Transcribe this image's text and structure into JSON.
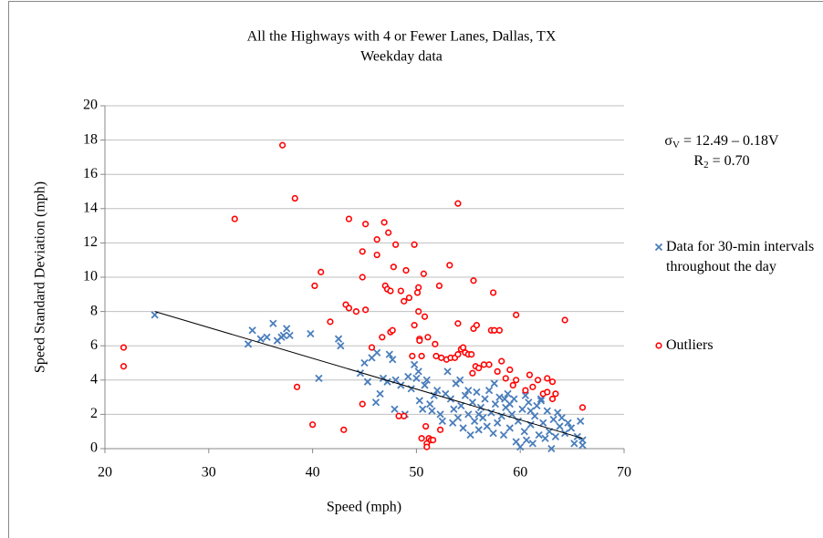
{
  "chart_data": {
    "type": "scatter",
    "title": "All the Highways with 4 or Fewer Lanes, Dallas, TX",
    "subtitle": "Weekday data",
    "x_label": "Speed (mph)",
    "y_label": "Speed Standard Deviation (mph)",
    "xlim": [
      20,
      70
    ],
    "xticks": [
      20,
      30,
      40,
      50,
      60,
      70
    ],
    "ylim": [
      0,
      20
    ],
    "yticks": [
      0,
      2,
      4,
      6,
      8,
      10,
      12,
      14,
      16,
      18,
      20
    ],
    "grid": true,
    "legend": "right",
    "equation": {
      "symbol": "σ",
      "sub": "V",
      "rest": " = 12.49 – 0.18V"
    },
    "r2": {
      "symbol": "R",
      "sub": "2",
      "rest": " = 0.70"
    },
    "trendline": {
      "color": "#000000",
      "x": [
        24.8,
        66
      ],
      "values": [
        8.0,
        0.6
      ]
    },
    "series": [
      {
        "name": "Data for 30-min intervals throughout the day",
        "color": "#4a7ebb",
        "marker": "x",
        "x": [
          24.8,
          33.8,
          34.2,
          35,
          35.6,
          36.2,
          36.6,
          37,
          37.2,
          37.5,
          37.8,
          39.8,
          40.6,
          42.5,
          42.7,
          44.6,
          45,
          45.3,
          45.7,
          46.1,
          46.2,
          46.5,
          46.8,
          47.2,
          47.4,
          47.7,
          47.9,
          48,
          48.5,
          48.9,
          49.2,
          49.5,
          49.8,
          50,
          50.3,
          50.6,
          50.8,
          51,
          51.3,
          51.7,
          52,
          52.3,
          52.5,
          52.8,
          53,
          53.3,
          53.6,
          53.8,
          54,
          54.3,
          54.5,
          54.7,
          55,
          55.2,
          55.4,
          55.6,
          55.8,
          56,
          56.2,
          56.4,
          56.6,
          56.8,
          57,
          57.2,
          57.4,
          57.6,
          57.8,
          58,
          58.2,
          58.4,
          58.6,
          58.8,
          59,
          59.2,
          59.4,
          59.6,
          59.8,
          60,
          60.2,
          60.4,
          60.6,
          60.8,
          61,
          61.2,
          61.4,
          61.6,
          61.8,
          62,
          62.2,
          62.4,
          62.6,
          62.8,
          63,
          63.2,
          63.4,
          63.6,
          63.8,
          64,
          64.3,
          64.6,
          64.9,
          65.2,
          65.5,
          65.8,
          66,
          66,
          57.5,
          58.5,
          60.5,
          62,
          56,
          55,
          59,
          61,
          53.5,
          51.5,
          50.2,
          54.2
        ],
        "values": [
          7.8,
          6.1,
          6.9,
          6.4,
          6.5,
          7.3,
          6.3,
          6.5,
          6.6,
          7.0,
          6.6,
          6.7,
          4.1,
          6.4,
          6.0,
          4.4,
          5.0,
          3.9,
          5.3,
          2.7,
          5.6,
          3.2,
          4.1,
          3.9,
          5.5,
          5.2,
          2.3,
          4.0,
          3.7,
          2.0,
          4.2,
          3.5,
          4.9,
          4.1,
          2.8,
          2.3,
          3.7,
          4.0,
          2.6,
          3.1,
          3.4,
          2.0,
          1.6,
          3.2,
          4.5,
          2.9,
          2.3,
          3.8,
          1.8,
          2.5,
          1.2,
          3.1,
          2.0,
          0.8,
          2.7,
          1.6,
          3.3,
          1.1,
          2.4,
          1.8,
          2.9,
          1.3,
          3.4,
          2.1,
          0.9,
          2.6,
          1.5,
          3.0,
          1.9,
          0.8,
          2.4,
          3.2,
          1.2,
          2.0,
          2.9,
          0.4,
          1.6,
          0.1,
          2.3,
          1.0,
          0.5,
          2.7,
          1.4,
          0.3,
          1.9,
          2.5,
          0.8,
          2.8,
          1.5,
          0.6,
          2.2,
          1.0,
          0.0,
          1.7,
          0.7,
          2.1,
          1.3,
          1.8,
          0.9,
          1.5,
          1.2,
          0.3,
          0.7,
          1.6,
          0.2,
          0.5,
          3.8,
          2.9,
          3.1,
          2.9,
          2.0,
          3.4,
          2.6,
          2.2,
          1.5,
          2.2,
          4.5,
          4.0
        ]
      },
      {
        "name": "Outliers",
        "color": "#ff0000",
        "marker": "circle",
        "x": [
          21.8,
          21.8,
          32.5,
          37.1,
          38.3,
          38.5,
          40,
          40.2,
          40.8,
          41.7,
          43,
          43.2,
          43.5,
          43.5,
          44.2,
          44.8,
          44.8,
          44.8,
          45.1,
          45.1,
          45.7,
          46.2,
          46.2,
          46.7,
          46.9,
          47,
          47.2,
          47.3,
          47.5,
          47.5,
          47.7,
          47.8,
          48,
          48.3,
          48.5,
          48.8,
          48.8,
          49,
          49.3,
          49.6,
          49.8,
          49.8,
          50.1,
          50.2,
          50.3,
          50.2,
          50.3,
          50.5,
          50.5,
          50.7,
          50.8,
          50.9,
          51,
          51,
          51.1,
          51.2,
          51.4,
          51.6,
          51.8,
          51.9,
          52.2,
          52.3,
          52.4,
          52.9,
          53.2,
          53.3,
          53.7,
          54,
          54,
          54,
          54.3,
          54.5,
          54.7,
          55,
          55.3,
          55.5,
          55.4,
          55.5,
          55.7,
          55.8,
          56,
          56.5,
          57,
          57.2,
          57.4,
          57.5,
          57.8,
          58,
          58.2,
          58.6,
          59,
          59.3,
          59.6,
          59.6,
          60.5,
          60.9,
          61.2,
          61.7,
          62.2,
          62.6,
          62.6,
          63.1,
          63.1,
          63.4,
          64.3,
          66
        ],
        "values": [
          5.9,
          4.8,
          13.4,
          17.7,
          14.6,
          3.6,
          1.4,
          9.5,
          10.3,
          7.4,
          1.1,
          8.4,
          13.4,
          8.2,
          8.0,
          10.0,
          11.5,
          2.6,
          8.1,
          13.1,
          5.9,
          11.3,
          12.2,
          6.5,
          13.2,
          9.5,
          9.3,
          12.6,
          6.8,
          9.2,
          6.9,
          10.6,
          11.9,
          1.9,
          9.2,
          8.6,
          1.9,
          10.4,
          8.8,
          5.4,
          7.2,
          11.9,
          9.1,
          9.4,
          6.4,
          8.0,
          6.3,
          0.6,
          5.4,
          10.2,
          7.7,
          1.3,
          0.3,
          0.1,
          6.5,
          0.6,
          0.5,
          0.5,
          6.1,
          5.4,
          9.5,
          1.1,
          5.3,
          5.2,
          10.7,
          5.3,
          5.3,
          14.3,
          5.5,
          7.3,
          5.8,
          5.9,
          5.6,
          5.5,
          5.5,
          9.8,
          4.4,
          7.0,
          4.8,
          7.2,
          4.7,
          4.9,
          4.9,
          6.9,
          9.1,
          6.9,
          4.5,
          6.9,
          5.1,
          4.1,
          4.6,
          3.7,
          7.8,
          4.0,
          3.4,
          4.3,
          3.6,
          4.0,
          3.2,
          3.3,
          4.1,
          3.9,
          2.9,
          3.2,
          7.5,
          2.4
        ]
      }
    ]
  }
}
